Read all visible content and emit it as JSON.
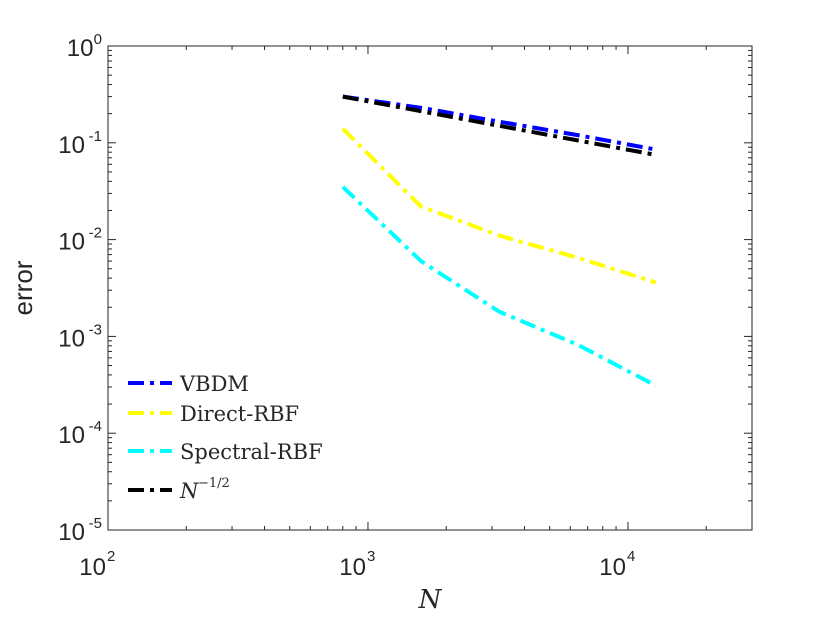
{
  "chart_data": {
    "type": "line",
    "x_scale": "log",
    "y_scale": "log",
    "xlabel": "N",
    "ylabel": "error",
    "xlim": [
      100,
      30000
    ],
    "ylim": [
      1e-05,
      1
    ],
    "x_ticks": [
      {
        "base": "10",
        "exp": "2"
      },
      {
        "base": "10",
        "exp": "3"
      },
      {
        "base": "10",
        "exp": "4"
      }
    ],
    "y_ticks": [
      {
        "base": "10",
        "exp": "0"
      },
      {
        "base": "10",
        "exp": "-1"
      },
      {
        "base": "10",
        "exp": "-2"
      },
      {
        "base": "10",
        "exp": "-3"
      },
      {
        "base": "10",
        "exp": "-4"
      },
      {
        "base": "10",
        "exp": "-5"
      }
    ],
    "x_tick_values": [
      100,
      1000,
      10000
    ],
    "y_tick_values": [
      1,
      0.1,
      0.01,
      0.001,
      0.0001,
      1e-05
    ],
    "legend_position": "bottom-left",
    "series": [
      {
        "name": "VBDM",
        "color": "#0000ff",
        "x": [
          800,
          1600,
          3200,
          6400,
          12800
        ],
        "y": [
          0.3,
          0.23,
          0.165,
          0.12,
          0.085
        ]
      },
      {
        "name": "Direct-RBF",
        "color": "#ffff00",
        "x": [
          800,
          1600,
          3200,
          6400,
          12800
        ],
        "y": [
          0.14,
          0.022,
          0.011,
          0.0065,
          0.0036
        ]
      },
      {
        "name": "Spectral-RBF",
        "color": "#00ffff",
        "x": [
          800,
          1600,
          3200,
          6400,
          12800
        ],
        "y": [
          0.035,
          0.006,
          0.0018,
          0.00082,
          0.00031
        ]
      },
      {
        "name": "N^{-1/2}",
        "label_base": "N",
        "label_exp": "−1/2",
        "color": "#000000",
        "x": [
          800,
          1600,
          3200,
          6400,
          12800
        ],
        "y": [
          0.3,
          0.212,
          0.15,
          0.106,
          0.075
        ]
      }
    ]
  }
}
